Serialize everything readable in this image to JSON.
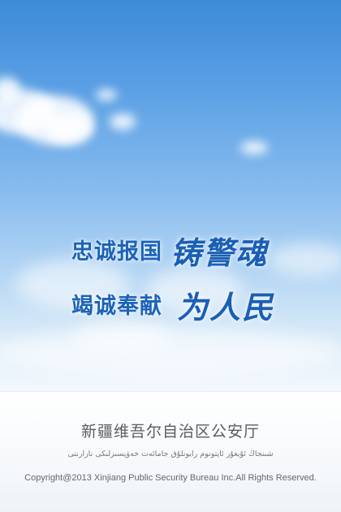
{
  "slogan": {
    "line1_plain": "忠诚报国",
    "line1_script": "铸警魂",
    "line2_plain": "竭诚奉献",
    "line2_script": "为人民"
  },
  "footer": {
    "organization_cn": "新疆维吾尔自治区公安厅",
    "organization_ug": "شىنجاڭ ئۇيغۇر ئاپتونوم رايونلۇق جامائەت خەۋپسىزلىكى نازارىتى",
    "copyright": "Copyright@2013 Xinjiang Public Security Bureau Inc.All Rights Reserved."
  },
  "colors": {
    "sky_top": "#3d8bd9",
    "sky_bottom": "#f3f8fd",
    "slogan_blue": "#1c63b8",
    "footer_text": "#5b5b5b"
  }
}
